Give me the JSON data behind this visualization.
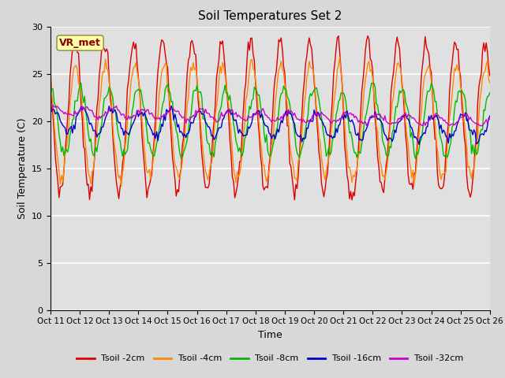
{
  "title": "Soil Temperatures Set 2",
  "xlabel": "Time",
  "ylabel": "Soil Temperature (C)",
  "ylim": [
    0,
    30
  ],
  "xlim": [
    0,
    360
  ],
  "plot_bg_color": "#e0e0e0",
  "fig_bg_color": "#d8d8d8",
  "annotation_text": "VR_met",
  "annotation_box_facecolor": "#ffffaa",
  "annotation_box_edgecolor": "#888844",
  "annotation_text_color": "#880000",
  "grid_color": "#cccccc",
  "series_order": [
    "Tsoil -2cm",
    "Tsoil -4cm",
    "Tsoil -8cm",
    "Tsoil -16cm",
    "Tsoil -32cm"
  ],
  "series": {
    "Tsoil -2cm": {
      "color": "#dd0000",
      "linewidth": 1.0
    },
    "Tsoil -4cm": {
      "color": "#ff8800",
      "linewidth": 1.0
    },
    "Tsoil -8cm": {
      "color": "#00bb00",
      "linewidth": 1.0
    },
    "Tsoil -16cm": {
      "color": "#0000cc",
      "linewidth": 1.0
    },
    "Tsoil -32cm": {
      "color": "#cc00cc",
      "linewidth": 1.0
    }
  },
  "xtick_labels": [
    "Oct 11",
    "Oct 12",
    "Oct 13",
    "Oct 14",
    "Oct 15",
    "Oct 16",
    "Oct 17",
    "Oct 18",
    "Oct 19",
    "Oct 20",
    "Oct 21",
    "Oct 22",
    "Oct 23",
    "Oct 24",
    "Oct 25",
    "Oct 26"
  ],
  "xtick_positions": [
    0,
    24,
    48,
    72,
    96,
    120,
    144,
    168,
    192,
    216,
    240,
    264,
    288,
    312,
    336,
    360
  ],
  "ytick_positions": [
    0,
    5,
    10,
    15,
    20,
    25,
    30
  ]
}
